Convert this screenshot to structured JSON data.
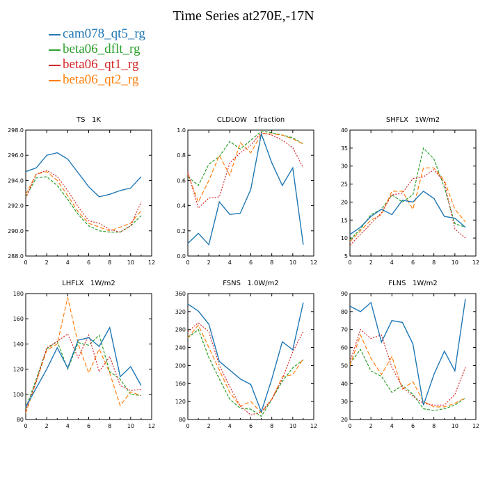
{
  "figure": {
    "title": "Time Series at270E,-17N"
  },
  "legend": [
    {
      "name": "cam078_qt5_rg",
      "color": "#1f77b4",
      "dash": ""
    },
    {
      "name": "beta06_dflt_rg",
      "color": "#2ca02c",
      "dash": "4,2"
    },
    {
      "name": "beta06_qt1_rg",
      "color": "#d62728",
      "dash": "2,2"
    },
    {
      "name": "beta06_qt2_rg",
      "color": "#ff7f0e",
      "dash": "6,3"
    }
  ],
  "chart_data": [
    {
      "type": "line",
      "title": "TS   1K",
      "x": [
        0,
        1,
        2,
        3,
        4,
        5,
        6,
        7,
        8,
        9,
        10,
        11
      ],
      "xlim": [
        0,
        12
      ],
      "xticks": [
        0,
        2,
        4,
        6,
        8,
        10,
        12
      ],
      "ylim": [
        288,
        298
      ],
      "yticks": [
        "288.0",
        "290.0",
        "292.0",
        "294.0",
        "296.0",
        "298.0"
      ],
      "series": [
        {
          "name": "cam078_qt5_rg",
          "values": [
            294.7,
            295.0,
            296.0,
            296.2,
            295.7,
            294.6,
            293.5,
            292.7,
            292.9,
            293.2,
            293.4,
            294.3
          ]
        },
        {
          "name": "beta06_dflt_rg",
          "values": [
            292.7,
            294.2,
            294.3,
            293.6,
            292.5,
            291.3,
            290.4,
            290.0,
            289.9,
            289.9,
            290.4,
            291.2
          ]
        },
        {
          "name": "beta06_qt1_rg",
          "values": [
            292.6,
            294.5,
            294.8,
            294.3,
            293.2,
            291.9,
            290.8,
            290.6,
            290.1,
            289.9,
            290.4,
            292.3
          ]
        },
        {
          "name": "beta06_qt2_rg",
          "values": [
            292.9,
            294.5,
            294.7,
            294.0,
            292.8,
            291.5,
            290.6,
            290.3,
            290.0,
            290.3,
            290.6,
            291.6
          ]
        }
      ]
    },
    {
      "type": "line",
      "title": "CLDLOW   1fraction",
      "x": [
        0,
        1,
        2,
        3,
        4,
        5,
        6,
        7,
        8,
        9,
        10,
        11
      ],
      "xlim": [
        0,
        12
      ],
      "xticks": [
        0,
        2,
        4,
        6,
        8,
        10,
        12
      ],
      "ylim": [
        0,
        1
      ],
      "yticks": [
        "0.0",
        "0.2",
        "0.4",
        "0.6",
        "0.8",
        "1.0"
      ],
      "series": [
        {
          "name": "cam078_qt5_rg",
          "values": [
            0.1,
            0.18,
            0.09,
            0.43,
            0.33,
            0.34,
            0.53,
            0.97,
            0.74,
            0.56,
            0.7,
            0.09
          ]
        },
        {
          "name": "beta06_dflt_rg",
          "values": [
            0.63,
            0.56,
            0.73,
            0.79,
            0.91,
            0.85,
            0.92,
            0.99,
            0.98,
            0.96,
            0.94,
            0.89
          ]
        },
        {
          "name": "beta06_qt1_rg",
          "values": [
            0.67,
            0.38,
            0.46,
            0.47,
            0.74,
            0.82,
            0.88,
            0.98,
            0.96,
            0.92,
            0.86,
            0.7
          ]
        },
        {
          "name": "beta06_qt2_rg",
          "values": [
            0.65,
            0.43,
            0.6,
            0.8,
            0.64,
            0.9,
            0.82,
            0.97,
            0.97,
            0.96,
            0.93,
            0.89
          ]
        }
      ]
    },
    {
      "type": "line",
      "title": "SHFLX   1W/m2",
      "x": [
        0,
        1,
        2,
        3,
        4,
        5,
        6,
        7,
        8,
        9,
        10,
        11
      ],
      "xlim": [
        0,
        12
      ],
      "xticks": [
        0,
        2,
        4,
        6,
        8,
        10,
        12
      ],
      "ylim": [
        5,
        40
      ],
      "yticks": [
        "5",
        "10",
        "15",
        "20",
        "25",
        "30",
        "35",
        "40"
      ],
      "series": [
        {
          "name": "cam078_qt5_rg",
          "values": [
            11.0,
            13.0,
            16.0,
            18.0,
            16.5,
            20.5,
            20.0,
            23.0,
            21.0,
            16.0,
            15.5,
            13.0
          ]
        },
        {
          "name": "beta06_dflt_rg",
          "values": [
            9.5,
            12.5,
            16.5,
            18.0,
            22.0,
            20.0,
            22.0,
            35.0,
            32.0,
            24.0,
            14.0,
            13.0
          ]
        },
        {
          "name": "beta06_qt1_rg",
          "values": [
            8.0,
            11.0,
            14.0,
            17.0,
            22.0,
            22.5,
            26.5,
            27.0,
            29.0,
            25.5,
            12.5,
            10.0
          ]
        },
        {
          "name": "beta06_qt2_rg",
          "values": [
            9.0,
            12.0,
            15.0,
            16.5,
            23.0,
            23.0,
            18.0,
            29.5,
            29.5,
            26.0,
            18.0,
            14.5
          ]
        }
      ]
    },
    {
      "type": "line",
      "title": "LHFLX   1W/m2",
      "x": [
        0,
        1,
        2,
        3,
        4,
        5,
        6,
        7,
        8,
        9,
        10,
        11
      ],
      "xlim": [
        0,
        12
      ],
      "xticks": [
        0,
        2,
        4,
        6,
        8,
        10,
        12
      ],
      "ylim": [
        80,
        180
      ],
      "yticks": [
        "80",
        "100",
        "120",
        "140",
        "160",
        "180"
      ],
      "series": [
        {
          "name": "cam078_qt5_rg",
          "values": [
            90,
            105,
            120,
            137,
            121,
            143,
            145,
            138,
            153,
            114,
            122,
            107
          ]
        },
        {
          "name": "beta06_dflt_rg",
          "values": [
            89,
            112,
            136,
            142,
            120,
            141,
            139,
            147,
            118,
            112,
            100,
            99
          ]
        },
        {
          "name": "beta06_qt1_rg",
          "values": [
            87,
            110,
            137,
            142,
            148,
            129,
            147,
            118,
            130,
            107,
            103,
            104
          ]
        },
        {
          "name": "beta06_qt2_rg",
          "values": [
            85,
            110,
            135,
            140,
            177,
            140,
            117,
            136,
            117,
            91,
            102,
            99
          ]
        }
      ]
    },
    {
      "type": "line",
      "title": "FSNS   1.0W/m2",
      "x": [
        0,
        1,
        2,
        3,
        4,
        5,
        6,
        7,
        8,
        9,
        10,
        11
      ],
      "xlim": [
        0,
        12
      ],
      "xticks": [
        0,
        2,
        4,
        6,
        8,
        10,
        12
      ],
      "ylim": [
        80,
        360
      ],
      "yticks": [
        "80",
        "120",
        "160",
        "200",
        "240",
        "280",
        "320",
        "360"
      ],
      "series": [
        {
          "name": "cam078_qt5_rg",
          "values": [
            337,
            321,
            292,
            209,
            190,
            170,
            158,
            97,
            170,
            253,
            235,
            340
          ]
        },
        {
          "name": "beta06_dflt_rg",
          "values": [
            262,
            280,
            218,
            170,
            125,
            105,
            103,
            87,
            125,
            165,
            195,
            213
          ]
        },
        {
          "name": "beta06_qt1_rg",
          "values": [
            275,
            295,
            275,
            200,
            153,
            110,
            90,
            97,
            125,
            170,
            230,
            276
          ]
        },
        {
          "name": "beta06_qt2_rg",
          "values": [
            262,
            290,
            240,
            190,
            140,
            110,
            120,
            95,
            125,
            175,
            180,
            215
          ]
        }
      ]
    },
    {
      "type": "line",
      "title": "FLNS   1W/m2",
      "x": [
        0,
        1,
        2,
        3,
        4,
        5,
        6,
        7,
        8,
        9,
        10,
        11
      ],
      "xlim": [
        0,
        12
      ],
      "xticks": [
        0,
        2,
        4,
        6,
        8,
        10,
        12
      ],
      "ylim": [
        20,
        90
      ],
      "yticks": [
        "20",
        "30",
        "40",
        "50",
        "60",
        "70",
        "80",
        "90"
      ],
      "series": [
        {
          "name": "cam078_qt5_rg",
          "values": [
            83,
            80,
            85,
            63,
            75,
            74,
            62,
            28,
            45,
            58,
            47,
            87
          ]
        },
        {
          "name": "beta06_dflt_rg",
          "values": [
            51,
            59,
            47,
            44,
            35,
            39,
            34,
            26,
            25,
            26,
            28,
            32
          ]
        },
        {
          "name": "beta06_qt1_rg",
          "values": [
            52,
            70,
            65,
            67,
            49,
            38,
            33,
            29,
            28,
            28,
            34,
            49
          ]
        },
        {
          "name": "beta06_qt2_rg",
          "values": [
            50,
            67,
            54,
            45,
            55,
            37,
            41,
            30,
            27,
            27,
            29,
            32
          ]
        }
      ]
    }
  ]
}
